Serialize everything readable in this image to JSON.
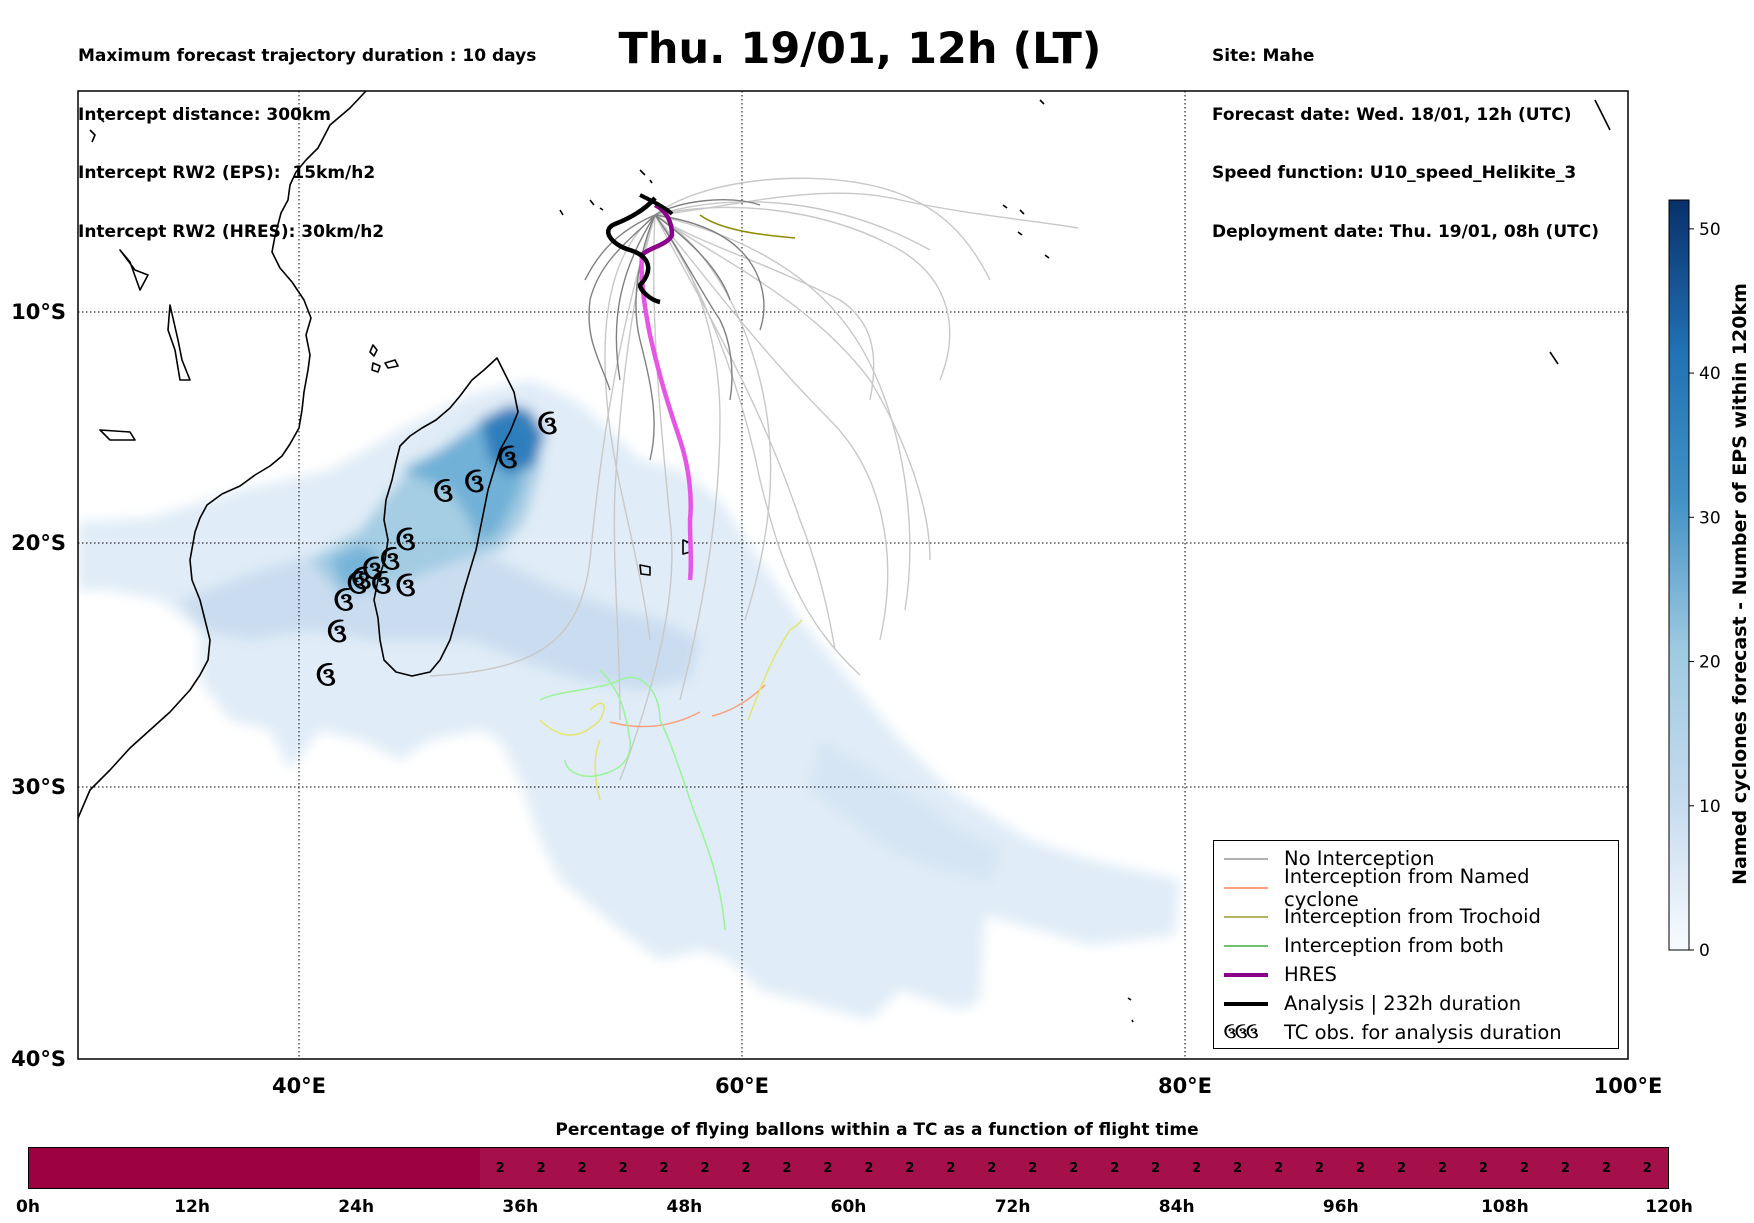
{
  "header": {
    "left_lines": [
      "Maximum forecast trajectory duration : 10 days",
      "Intercept distance: 300km",
      "Intercept RW2 (EPS):  15km/h2",
      "Intercept RW2 (HRES): 30km/h2"
    ],
    "title": "Thu. 19/01, 12h (LT)",
    "right_lines": [
      "Site: Mahe",
      "Forecast date: Wed. 18/01, 12h (UTC)",
      "Speed function: U10_speed_Helikite_3",
      "Deployment date: Thu. 19/01, 08h (UTC)"
    ]
  },
  "map": {
    "lon_range": [
      30,
      100
    ],
    "lat_range": [
      -40,
      0
    ],
    "lon_ticks": [
      "40°E",
      "60°E",
      "80°E",
      "100°E"
    ],
    "lat_ticks": [
      "10°S",
      "20°S",
      "30°S",
      "40°S"
    ],
    "grid": true,
    "site": "Mahe",
    "colors": {
      "no_interception": "#808080",
      "named_cyclone": "#ff6a2e",
      "trochoid": "#8b8b00",
      "both": "#1a9e1a",
      "hres": "#8b008b",
      "analysis": "#000000",
      "density_max": "#08306b"
    }
  },
  "colorbar": {
    "label": "Named cyclones forecast - Number of EPS within 120km",
    "min": 0,
    "max": 52,
    "ticks": [
      "0",
      "10",
      "20",
      "30",
      "40",
      "50"
    ]
  },
  "legend": {
    "items": [
      {
        "label": "No Interception",
        "style": "thin-line",
        "color": "#808080"
      },
      {
        "label": "Interception from Named cyclone",
        "style": "thin-line",
        "color": "#ff6a2e"
      },
      {
        "label": "Interception from Trochoid",
        "style": "thin-line",
        "color": "#8b8b00"
      },
      {
        "label": "Interception from both",
        "style": "thin-line",
        "color": "#1a9e1a"
      },
      {
        "label": "HRES",
        "style": "thick-line",
        "color": "#8b008b"
      },
      {
        "label": "Analysis | 232h duration",
        "style": "thick-line",
        "color": "#000000"
      },
      {
        "label": "TC obs. for analysis duration",
        "style": "symbol",
        "symbol": "ઉઉઉ"
      }
    ]
  },
  "tc_observations": [
    [
      51.2,
      -13.8
    ],
    [
      49.4,
      -15.2
    ],
    [
      47.9,
      -16.2
    ],
    [
      46.5,
      -16.6
    ],
    [
      44.8,
      -18.6
    ],
    [
      44.1,
      -19.4
    ],
    [
      43.3,
      -19.8
    ],
    [
      42.8,
      -20.2
    ],
    [
      42.6,
      -20.4
    ],
    [
      43.7,
      -20.4
    ],
    [
      44.8,
      -20.5
    ],
    [
      42.0,
      -21.1
    ],
    [
      41.7,
      -22.4
    ],
    [
      41.2,
      -24.2
    ]
  ],
  "bottom_bar": {
    "title": "Percentage of flying ballons within a TC as a function of flight time",
    "ticks": [
      "0h",
      "12h",
      "24h",
      "36h",
      "48h",
      "60h",
      "72h",
      "84h",
      "96h",
      "108h",
      "120h"
    ],
    "start_hours": 0,
    "end_hours": 120,
    "segments": [
      {
        "from": 0,
        "to": 33,
        "value": "",
        "color": "#9e0142"
      },
      {
        "from": 33,
        "to": 36,
        "value": "2",
        "color": "#a6104a"
      },
      {
        "from": 36,
        "to": 39,
        "value": "2",
        "color": "#a6104a"
      },
      {
        "from": 39,
        "to": 42,
        "value": "2",
        "color": "#a6104a"
      },
      {
        "from": 42,
        "to": 45,
        "value": "2",
        "color": "#a6104a"
      },
      {
        "from": 45,
        "to": 48,
        "value": "2",
        "color": "#a6104a"
      },
      {
        "from": 48,
        "to": 51,
        "value": "2",
        "color": "#a6104a"
      },
      {
        "from": 51,
        "to": 54,
        "value": "2",
        "color": "#a6104a"
      },
      {
        "from": 54,
        "to": 57,
        "value": "2",
        "color": "#a6104a"
      },
      {
        "from": 57,
        "to": 60,
        "value": "2",
        "color": "#a6104a"
      },
      {
        "from": 60,
        "to": 63,
        "value": "2",
        "color": "#a6104a"
      },
      {
        "from": 63,
        "to": 66,
        "value": "2",
        "color": "#a6104a"
      },
      {
        "from": 66,
        "to": 69,
        "value": "2",
        "color": "#a6104a"
      },
      {
        "from": 69,
        "to": 72,
        "value": "2",
        "color": "#a6104a"
      },
      {
        "from": 72,
        "to": 75,
        "value": "2",
        "color": "#a6104a"
      },
      {
        "from": 75,
        "to": 78,
        "value": "2",
        "color": "#a6104a"
      },
      {
        "from": 78,
        "to": 81,
        "value": "2",
        "color": "#a6104a"
      },
      {
        "from": 81,
        "to": 84,
        "value": "2",
        "color": "#a6104a"
      },
      {
        "from": 84,
        "to": 87,
        "value": "2",
        "color": "#a6104a"
      },
      {
        "from": 87,
        "to": 90,
        "value": "2",
        "color": "#a6104a"
      },
      {
        "from": 90,
        "to": 93,
        "value": "2",
        "color": "#a6104a"
      },
      {
        "from": 93,
        "to": 96,
        "value": "2",
        "color": "#a6104a"
      },
      {
        "from": 96,
        "to": 99,
        "value": "2",
        "color": "#a6104a"
      },
      {
        "from": 99,
        "to": 102,
        "value": "2",
        "color": "#a6104a"
      },
      {
        "from": 102,
        "to": 105,
        "value": "2",
        "color": "#a6104a"
      },
      {
        "from": 105,
        "to": 108,
        "value": "2",
        "color": "#a6104a"
      },
      {
        "from": 108,
        "to": 111,
        "value": "2",
        "color": "#a6104a"
      },
      {
        "from": 111,
        "to": 114,
        "value": "2",
        "color": "#a6104a"
      },
      {
        "from": 114,
        "to": 117,
        "value": "2",
        "color": "#a6104a"
      },
      {
        "from": 117,
        "to": 120,
        "value": "2",
        "color": "#a6104a"
      }
    ]
  }
}
